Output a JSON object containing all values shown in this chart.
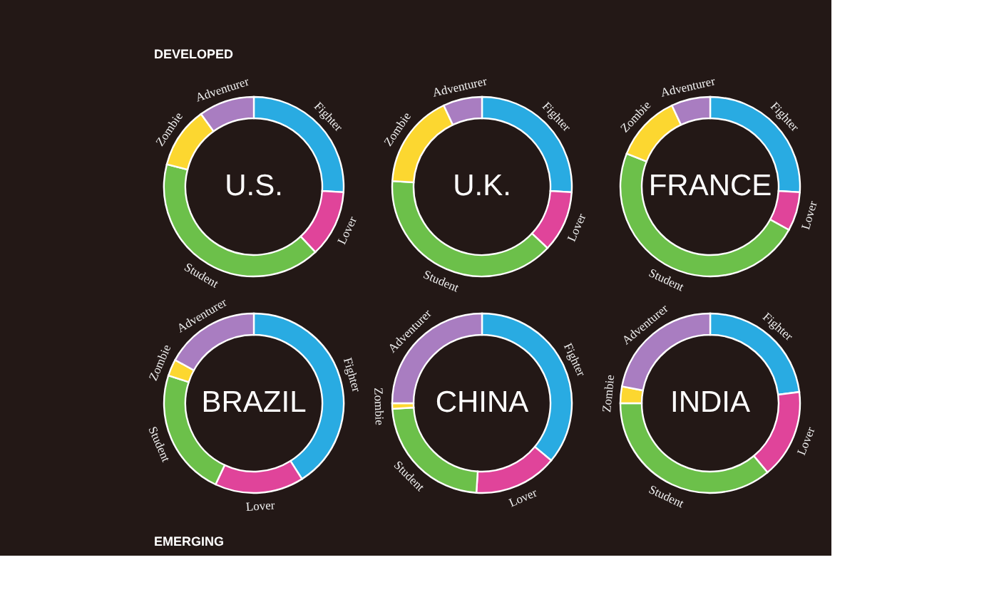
{
  "chart_data": [
    {
      "type": "donut",
      "title": "U.S.",
      "annotations": [
        "DEVELOPED"
      ],
      "categories": [
        "Fighter",
        "Lover",
        "Student",
        "Zombie",
        "Adventurer"
      ],
      "values": [
        26,
        12,
        41,
        11,
        10
      ],
      "colors": [
        "#29abe2",
        "#e0449a",
        "#6cc04a",
        "#fcd730",
        "#a97dc1"
      ]
    },
    {
      "type": "donut",
      "title": "U.K.",
      "categories": [
        "Fighter",
        "Lover",
        "Student",
        "Zombie",
        "Adventurer"
      ],
      "values": [
        26,
        11,
        39,
        17,
        7
      ],
      "colors": [
        "#29abe2",
        "#e0449a",
        "#6cc04a",
        "#fcd730",
        "#a97dc1"
      ]
    },
    {
      "type": "donut",
      "title": "FRANCE",
      "categories": [
        "Fighter",
        "Lover",
        "Student",
        "Zombie",
        "Adventurer"
      ],
      "values": [
        26,
        7,
        48,
        12,
        7
      ],
      "colors": [
        "#29abe2",
        "#e0449a",
        "#6cc04a",
        "#fcd730",
        "#a97dc1"
      ]
    },
    {
      "type": "donut",
      "title": "BRAZIL",
      "annotations": [
        "EMERGING"
      ],
      "categories": [
        "Fighter",
        "Lover",
        "Student",
        "Zombie",
        "Adventurer"
      ],
      "values": [
        41,
        16,
        23,
        3,
        17
      ],
      "colors": [
        "#29abe2",
        "#e0449a",
        "#6cc04a",
        "#fcd730",
        "#a97dc1"
      ]
    },
    {
      "type": "donut",
      "title": "CHINA",
      "categories": [
        "Fighter",
        "Lover",
        "Student",
        "Zombie",
        "Adventurer"
      ],
      "values": [
        36,
        15,
        23,
        1,
        25
      ],
      "colors": [
        "#29abe2",
        "#e0449a",
        "#6cc04a",
        "#fcd730",
        "#a97dc1"
      ]
    },
    {
      "type": "donut",
      "title": "INDIA",
      "categories": [
        "Fighter",
        "Lover",
        "Student",
        "Zombie",
        "Adventurer"
      ],
      "values": [
        23,
        16,
        36,
        3,
        22
      ],
      "colors": [
        "#29abe2",
        "#e0449a",
        "#6cc04a",
        "#fcd730",
        "#a97dc1"
      ]
    }
  ]
}
